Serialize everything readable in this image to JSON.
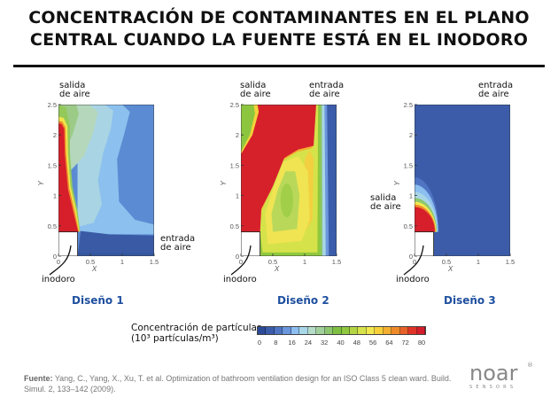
{
  "header": {
    "title": "CONCENTRACIÓN DE CONTAMINANTES EN EL PLANO\nCENTRAL CUANDO LA FUENTE ESTÁ EN EL INODORO"
  },
  "plots": [
    {
      "design_label": "Diseño 1",
      "outlet_label": "salida\nde aire",
      "inlet_label": "entrada\nde aire",
      "toilet_label": "inodoro"
    },
    {
      "design_label": "Diseño 2",
      "outlet_label": "salida\nde aire",
      "inlet_label": "entrada\nde aire",
      "toilet_label": "inodoro"
    },
    {
      "design_label": "Diseño 3",
      "outlet_label": "salida\nde aire",
      "inlet_label": "entrada\nde aire",
      "toilet_label": "inodoro"
    }
  ],
  "colorbar": {
    "label": "Concentración de partículas\n(10³ partículas/m³)",
    "ticks": [
      "0",
      "8",
      "16",
      "24",
      "32",
      "40",
      "48",
      "56",
      "64",
      "72",
      "80"
    ],
    "colors": [
      "#2b4a98",
      "#3a5caa",
      "#4f74c2",
      "#6a96dc",
      "#8cbef0",
      "#a9d6e6",
      "#b5dcc8",
      "#a2d09c",
      "#8cc66e",
      "#7fbf44",
      "#8fc83e",
      "#b3d544",
      "#d6e24a",
      "#f2e74f",
      "#f7cf3a",
      "#f4ae30",
      "#ef8a2a",
      "#e8602a",
      "#df3328",
      "#d31d2c"
    ]
  },
  "chart_data": {
    "type": "heatmap",
    "subtype": "filled contour",
    "xlabel": "X",
    "ylabel": "Y",
    "xticks": [
      "0",
      "0.5",
      "1",
      "1.5"
    ],
    "yticks": [
      "0",
      "0.5",
      "1",
      "1.5",
      "2",
      "2.5"
    ],
    "xlim": [
      0,
      1.5
    ],
    "ylim": [
      0,
      2.5
    ],
    "colorbar_range": [
      0,
      80
    ],
    "panels": [
      "Diseño 1",
      "Diseño 2",
      "Diseño 3"
    ]
  },
  "footer": {
    "source_label": "Fuente:",
    "source_text": " Yang, C., Yang, X., Xu, T. et al. Optimization of bathroom ventilation design for an ISO Class 5 clean ward. Build. Simul. 2, 133–142 (2009).",
    "logo": "noar",
    "logo_sub": "SENSORS",
    "logo_reg": "®"
  }
}
